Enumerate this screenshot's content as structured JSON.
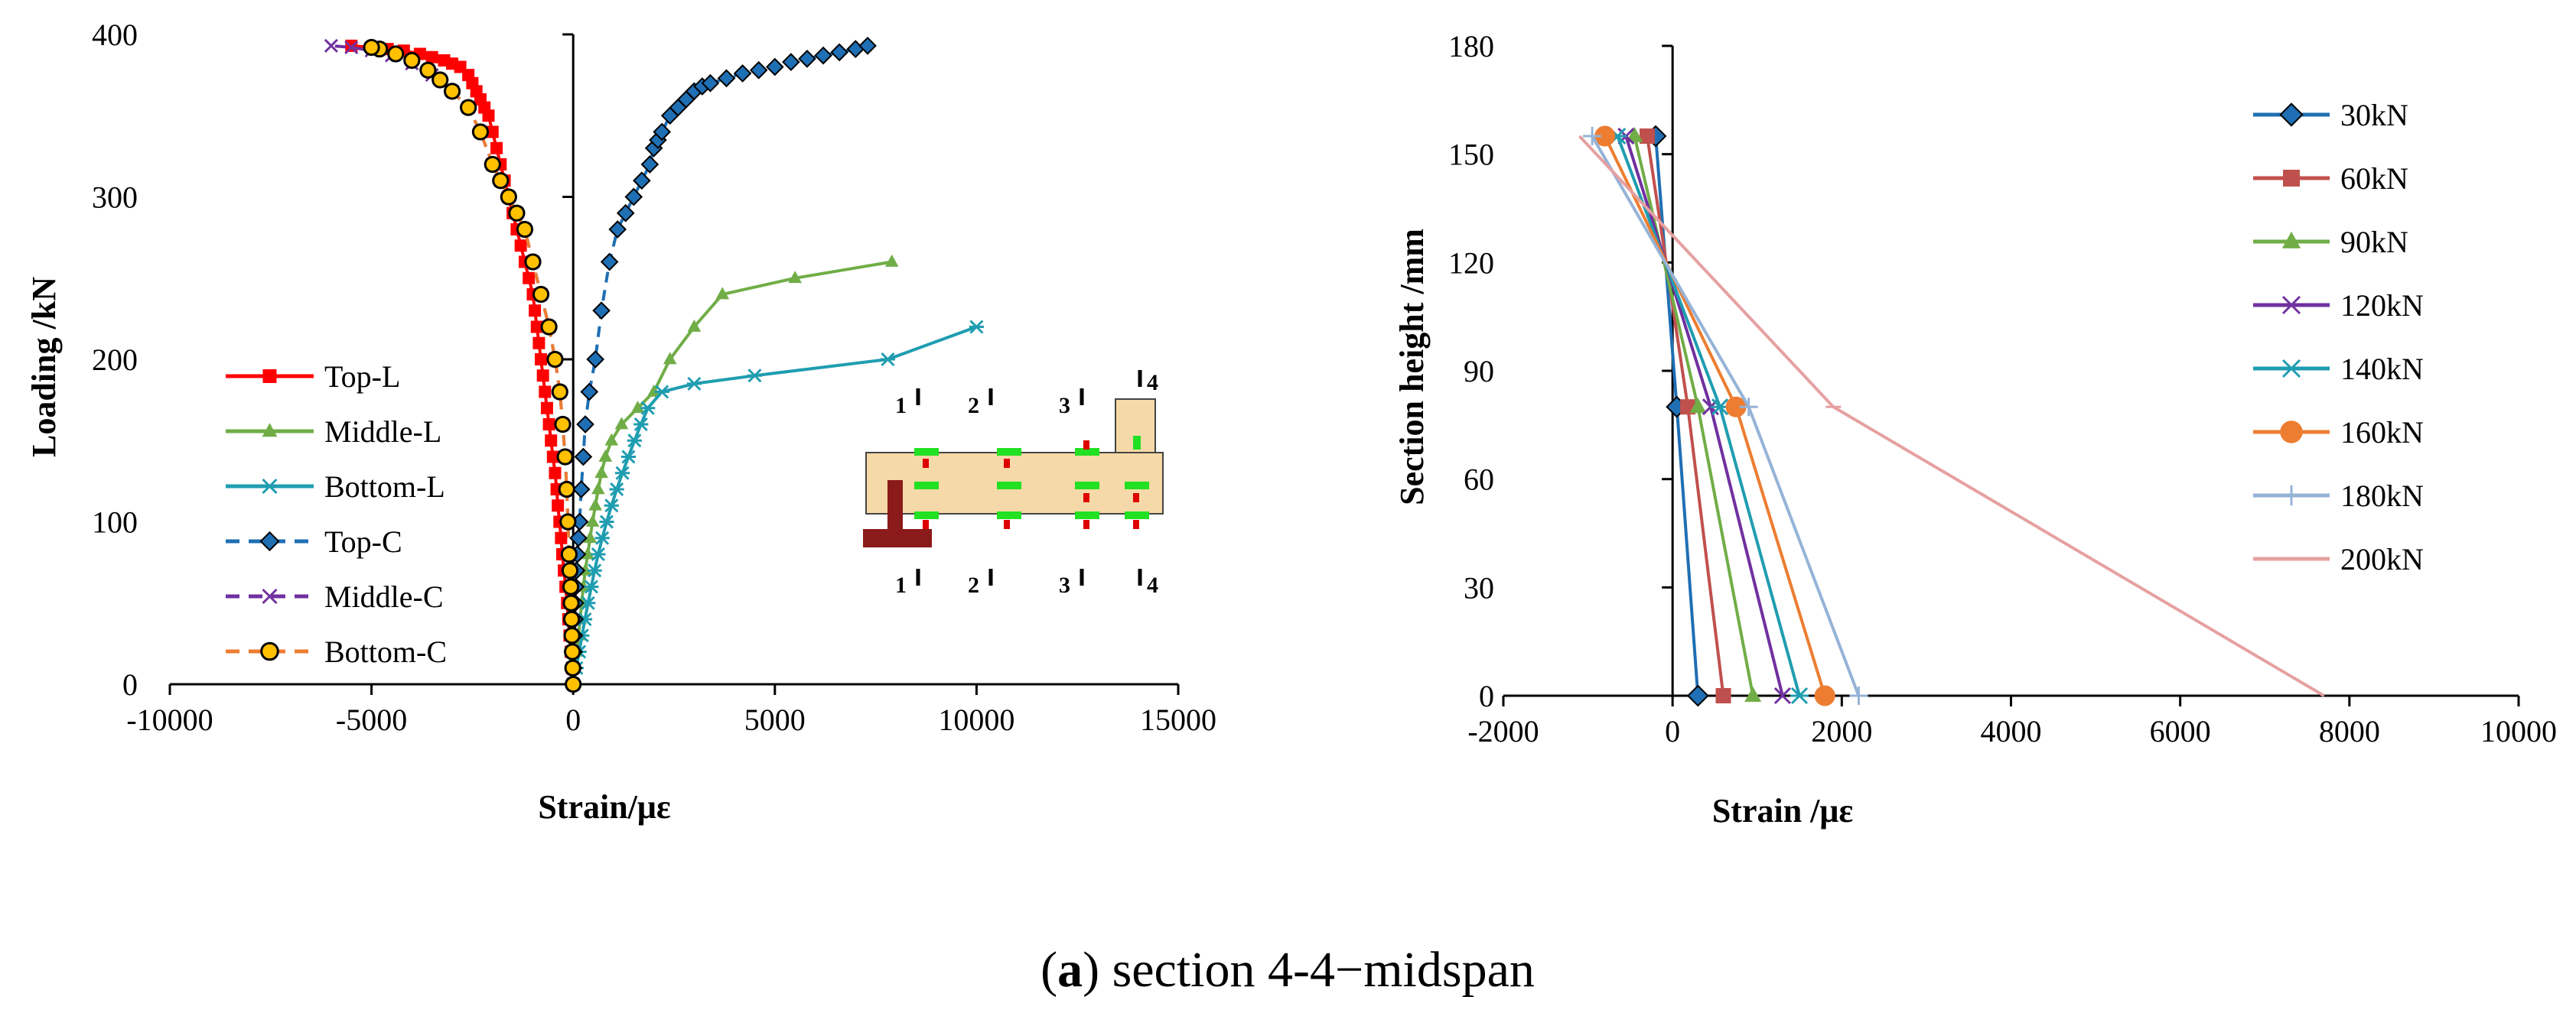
{
  "caption": {
    "open": "(",
    "letter": "a",
    "rest": ") section 4-4−midspan"
  },
  "inset": {
    "section_labels": [
      "1",
      "2",
      "3",
      "4"
    ],
    "colors": {
      "beam": "#f6d9a8",
      "beam_edge": "#444444",
      "steel": "#8b1a1a",
      "green": "#22e022",
      "red": "#dd0000"
    }
  },
  "chart_data": [
    {
      "type": "line",
      "title": "",
      "xlabel": "Strain/με",
      "ylabel": "Loading /kN",
      "xlim": [
        -10000,
        15000
      ],
      "ylim": [
        0,
        400
      ],
      "xticks": [
        -10000,
        -5000,
        0,
        5000,
        10000,
        15000
      ],
      "yticks": [
        0,
        100,
        200,
        300,
        400
      ],
      "legend_position": "left",
      "series": [
        {
          "name": "Top-L",
          "color": "#ff0000",
          "marker": "square",
          "dashed": false,
          "x": [
            0,
            -30,
            -60,
            -90,
            -120,
            -150,
            -190,
            -230,
            -270,
            -300,
            -340,
            -380,
            -410,
            -450,
            -500,
            -550,
            -600,
            -650,
            -700,
            -750,
            -800,
            -850,
            -900,
            -950,
            -1000,
            -1100,
            -1200,
            -1300,
            -1400,
            -1500,
            -1600,
            -1700,
            -1800,
            -1900,
            -2000,
            -2100,
            -2200,
            -2300,
            -2400,
            -2500,
            -2600,
            -2800,
            -3000,
            -3200,
            -3500,
            -3800,
            -4200,
            -4600,
            -5000,
            -5500
          ],
          "y": [
            0,
            10,
            20,
            30,
            40,
            50,
            60,
            70,
            80,
            90,
            100,
            110,
            120,
            130,
            140,
            150,
            160,
            170,
            180,
            190,
            200,
            210,
            220,
            230,
            240,
            250,
            260,
            270,
            280,
            290,
            300,
            310,
            320,
            330,
            340,
            350,
            355,
            360,
            365,
            370,
            375,
            380,
            382,
            384,
            386,
            388,
            390,
            391,
            392,
            393
          ]
        },
        {
          "name": "Middle-L",
          "color": "#70ad47",
          "marker": "triangle",
          "dashed": false,
          "x": [
            0,
            50,
            90,
            130,
            170,
            210,
            250,
            300,
            360,
            420,
            480,
            550,
            620,
            700,
            800,
            950,
            1200,
            1600,
            2000,
            2400,
            3000,
            3700,
            5500,
            7900
          ],
          "y": [
            0,
            10,
            20,
            30,
            40,
            50,
            60,
            70,
            80,
            90,
            100,
            110,
            120,
            130,
            140,
            150,
            160,
            170,
            180,
            200,
            220,
            240,
            250,
            260
          ]
        },
        {
          "name": "Bottom-L",
          "color": "#1f9db0",
          "marker": "star",
          "dashed": false,
          "x": [
            0,
            80,
            150,
            220,
            290,
            370,
            450,
            530,
            620,
            720,
            830,
            950,
            1080,
            1220,
            1370,
            1520,
            1680,
            1850,
            2200,
            3000,
            4500,
            7800,
            10000
          ],
          "y": [
            0,
            10,
            20,
            30,
            40,
            50,
            60,
            70,
            80,
            90,
            100,
            110,
            120,
            130,
            140,
            150,
            160,
            170,
            180,
            185,
            190,
            200,
            220
          ]
        },
        {
          "name": "Top-C",
          "color": "#1f6fb4",
          "marker": "diamond",
          "dashed": true,
          "x": [
            0,
            10,
            20,
            30,
            40,
            50,
            60,
            80,
            100,
            130,
            160,
            200,
            250,
            300,
            400,
            550,
            700,
            900,
            1100,
            1300,
            1500,
            1700,
            1900,
            2000,
            2100,
            2200,
            2400,
            2600,
            2800,
            3000,
            3200,
            3400,
            3800,
            4200,
            4600,
            5000,
            5400,
            5800,
            6200,
            6600,
            7000,
            7300
          ],
          "y": [
            0,
            10,
            20,
            30,
            40,
            50,
            60,
            70,
            80,
            90,
            100,
            120,
            140,
            160,
            180,
            200,
            230,
            260,
            280,
            290,
            300,
            310,
            320,
            330,
            335,
            340,
            350,
            355,
            360,
            365,
            368,
            370,
            373,
            376,
            378,
            380,
            383,
            385,
            387,
            389,
            391,
            393
          ]
        },
        {
          "name": "Middle-C",
          "color": "#7030a0",
          "marker": "x",
          "dashed": true,
          "x": [
            0,
            -10,
            -20,
            -30,
            -40,
            -50,
            -60,
            -80,
            -100,
            -130,
            -160,
            -200,
            -260,
            -330,
            -450,
            -600,
            -800,
            -1000,
            -1200,
            -1400,
            -1600,
            -1800,
            -2000,
            -2300,
            -2600,
            -3000,
            -3500,
            -4000,
            -4500,
            -5000,
            -5500,
            -6000
          ],
          "y": [
            0,
            10,
            20,
            30,
            40,
            50,
            60,
            70,
            80,
            100,
            120,
            140,
            160,
            180,
            200,
            220,
            240,
            260,
            280,
            290,
            300,
            310,
            320,
            340,
            355,
            365,
            375,
            382,
            387,
            390,
            392,
            393
          ]
        },
        {
          "name": "Bottom-C",
          "color": "#ed7d31",
          "marker_fill": "#ffc000",
          "marker_edge": "#000000",
          "marker": "circle",
          "dashed": true,
          "x": [
            0,
            -10,
            -20,
            -30,
            -40,
            -50,
            -60,
            -80,
            -100,
            -130,
            -160,
            -200,
            -260,
            -330,
            -450,
            -600,
            -800,
            -1000,
            -1200,
            -1400,
            -1600,
            -1800,
            -2000,
            -2300,
            -2600,
            -3000,
            -3300,
            -3600,
            -4000,
            -4400,
            -4800,
            -5000
          ],
          "y": [
            0,
            10,
            20,
            30,
            40,
            50,
            60,
            70,
            80,
            100,
            120,
            140,
            160,
            180,
            200,
            220,
            240,
            260,
            280,
            290,
            300,
            310,
            320,
            340,
            355,
            365,
            372,
            378,
            384,
            388,
            391,
            392
          ]
        }
      ]
    },
    {
      "type": "line",
      "title": "",
      "xlabel": "Strain /με",
      "ylabel": "Section height /mm",
      "xlim": [
        -2000,
        10000
      ],
      "ylim": [
        0,
        180
      ],
      "xticks": [
        -2000,
        0,
        2000,
        4000,
        6000,
        8000,
        10000
      ],
      "yticks": [
        0,
        30,
        60,
        90,
        120,
        150,
        180
      ],
      "legend_position": "right",
      "series": [
        {
          "name": "30kN",
          "color": "#1f6fb4",
          "marker": "diamond",
          "x": [
            300,
            50,
            -200
          ],
          "y": [
            0,
            80,
            155
          ]
        },
        {
          "name": "60kN",
          "color": "#c0504d",
          "marker": "square",
          "x": [
            600,
            180,
            -300
          ],
          "y": [
            0,
            80,
            155
          ]
        },
        {
          "name": "90kN",
          "color": "#70ad47",
          "marker": "triangle",
          "x": [
            950,
            300,
            -450
          ],
          "y": [
            0,
            80,
            155
          ]
        },
        {
          "name": "120kN",
          "color": "#7030a0",
          "marker": "x",
          "x": [
            1300,
            450,
            -550
          ],
          "y": [
            0,
            80,
            155
          ]
        },
        {
          "name": "140kN",
          "color": "#1f9db0",
          "marker": "star",
          "x": [
            1500,
            560,
            -650
          ],
          "y": [
            0,
            80,
            155
          ]
        },
        {
          "name": "160kN",
          "color": "#ed7d31",
          "marker": "circle",
          "x": [
            1800,
            750,
            -800
          ],
          "y": [
            0,
            80,
            155
          ]
        },
        {
          "name": "180kN",
          "color": "#95b3d7",
          "marker": "plus",
          "x": [
            2200,
            900,
            -950
          ],
          "y": [
            0,
            80,
            155
          ]
        },
        {
          "name": "200kN",
          "color": "#e6a0a0",
          "marker": "dash",
          "x": [
            7700,
            1900,
            -1100
          ],
          "y": [
            0,
            80,
            155
          ]
        }
      ]
    }
  ]
}
